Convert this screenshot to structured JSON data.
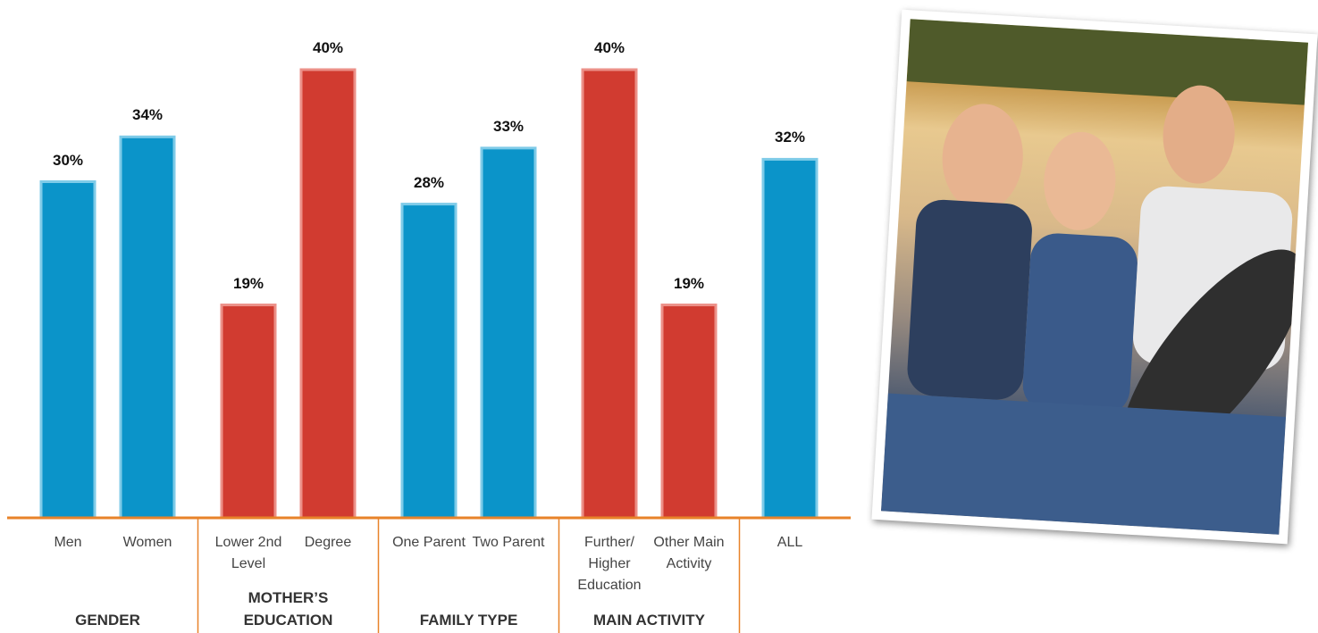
{
  "chart_data": {
    "type": "bar",
    "groups": [
      {
        "label": "GENDER",
        "categories": [
          "Men",
          "Women"
        ],
        "values": [
          30,
          34
        ],
        "value_labels": [
          "30%",
          "34%"
        ],
        "colors": [
          "#0b94c9",
          "#0b94c9"
        ]
      },
      {
        "label": "MOTHER’S EDUCATION",
        "categories": [
          "Lower 2nd Level",
          "Degree"
        ],
        "values": [
          19,
          40
        ],
        "value_labels": [
          "19%",
          "40%"
        ],
        "colors": [
          "#d13b30",
          "#d13b30"
        ]
      },
      {
        "label": "FAMILY TYPE",
        "categories": [
          "One Parent",
          "Two Parent"
        ],
        "values": [
          28,
          33
        ],
        "value_labels": [
          "28%",
          "33%"
        ],
        "colors": [
          "#0b94c9",
          "#0b94c9"
        ]
      },
      {
        "label": "MAIN ACTIVITY",
        "categories": [
          "Further/ Higher Education",
          "Other Main Activity"
        ],
        "values": [
          40,
          19
        ],
        "value_labels": [
          "40%",
          "19%"
        ],
        "colors": [
          "#d13b30",
          "#d13b30"
        ]
      },
      {
        "label": null,
        "categories": [
          "ALL"
        ],
        "values": [
          32
        ],
        "value_labels": [
          "32%"
        ],
        "colors": [
          "#0b94c9"
        ]
      }
    ]
  }
}
